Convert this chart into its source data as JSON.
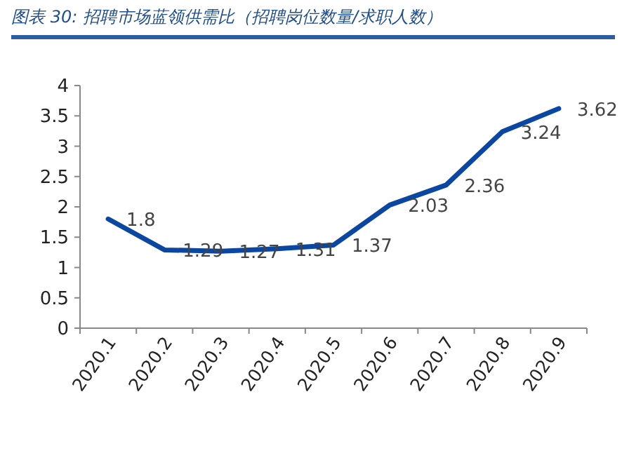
{
  "chart_data": {
    "type": "line",
    "title": "图表 30:  招聘市场蓝领供需比（招聘岗位数量/求职人数）",
    "categories": [
      "2020.1",
      "2020.2",
      "2020.3",
      "2020.4",
      "2020.5",
      "2020.6",
      "2020.7",
      "2020.8",
      "2020.9"
    ],
    "series": [
      {
        "color": "#0b47a1",
        "values": [
          1.8,
          1.29,
          1.27,
          1.31,
          1.37,
          2.03,
          2.36,
          3.24,
          3.62
        ]
      }
    ],
    "ylim": [
      0,
      4
    ],
    "yticks": [
      0,
      0.5,
      1,
      1.5,
      2,
      2.5,
      3,
      3.5,
      4
    ],
    "data_labels": true,
    "grid": false,
    "marker": "none",
    "line_style": "solid"
  }
}
